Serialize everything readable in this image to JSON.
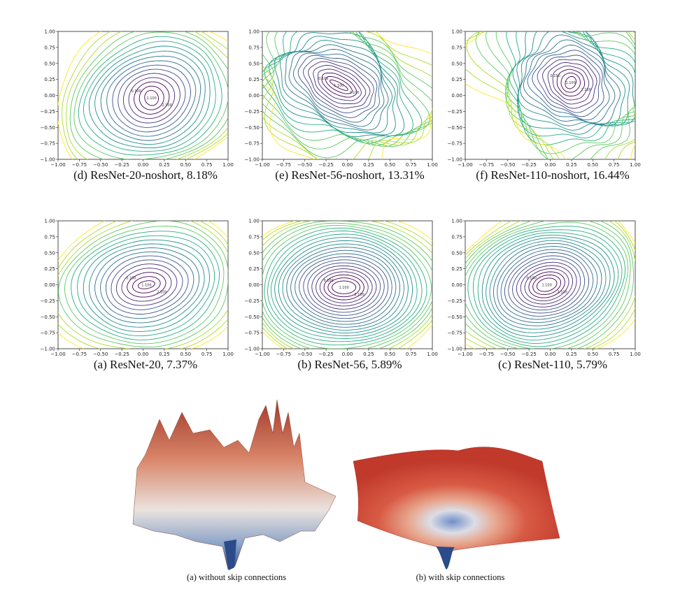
{
  "axis_ticks": [
    "−1.00",
    "−0.75",
    "−0.50",
    "−0.25",
    "0.00",
    "0.25",
    "0.50",
    "0.75",
    "1.00"
  ],
  "contour_labels": [
    "0.100",
    "0.600",
    "1.100",
    "1.600",
    "2.100",
    "2.600",
    "3.100",
    "3.600",
    "4.100",
    "4.600",
    "5.100"
  ],
  "panels": [
    {
      "caption": "(d)  ResNet-20-noshort, 8.18%"
    },
    {
      "caption": "(e)  ResNet-56-noshort, 13.31%"
    },
    {
      "caption": "(f)  ResNet-110-noshort, 16.44%"
    },
    {
      "caption": "(a)  ResNet-20, 7.37%"
    },
    {
      "caption": "(b)  ResNet-56, 5.89%"
    },
    {
      "caption": "(c)  ResNet-110, 5.79%"
    }
  ],
  "surfaces": [
    {
      "caption": "(a) without skip connections"
    },
    {
      "caption": "(b) with skip connections"
    }
  ],
  "colors": {
    "viridis_low": "#440154",
    "viridis_mid": "#21918c",
    "viridis_high": "#fde725",
    "surface_red": "#c0392b",
    "surface_blue": "#2b4b8a"
  }
}
